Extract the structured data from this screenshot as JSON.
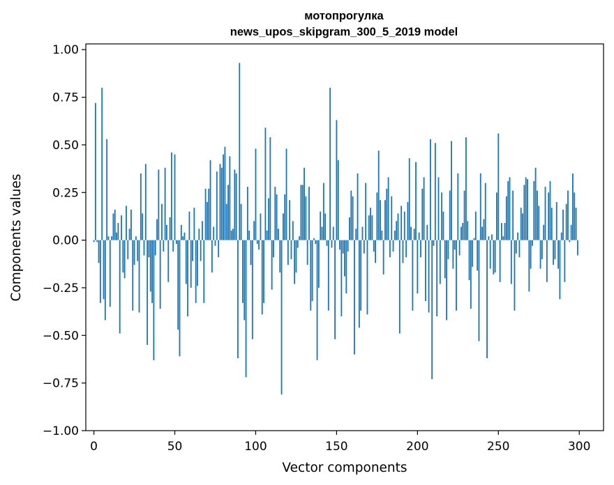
{
  "chart_data": {
    "type": "bar",
    "title": "мотопрогулка",
    "subtitle": "news_upos_skipgram_300_5_2019 model",
    "xlabel": "Vector components",
    "ylabel": "Components values",
    "xlim": [
      -5,
      315
    ],
    "ylim": [
      -1.0,
      1.03
    ],
    "xticks": [
      0,
      50,
      100,
      150,
      200,
      250,
      300
    ],
    "xtick_labels": [
      "0",
      "50",
      "100",
      "150",
      "200",
      "250",
      "300"
    ],
    "yticks": [
      1.0,
      0.75,
      0.5,
      0.25,
      0.0,
      -0.25,
      -0.5,
      -0.75,
      -1.0
    ],
    "ytick_labels": [
      "1.00",
      "0.75",
      "0.50",
      "0.25",
      "0.00",
      "−0.25",
      "−0.50",
      "−0.75",
      "−1.00"
    ],
    "grid": false,
    "bar_color": "#1f77b4",
    "x": [
      0,
      1,
      2,
      3,
      4,
      5,
      6,
      7,
      8,
      9,
      10,
      11,
      12,
      13,
      14,
      15,
      16,
      17,
      18,
      19,
      20,
      21,
      22,
      23,
      24,
      25,
      26,
      27,
      28,
      29,
      30,
      31,
      32,
      33,
      34,
      35,
      36,
      37,
      38,
      39,
      40,
      41,
      42,
      43,
      44,
      45,
      46,
      47,
      48,
      49,
      50,
      51,
      52,
      53,
      54,
      55,
      56,
      57,
      58,
      59,
      60,
      61,
      62,
      63,
      64,
      65,
      66,
      67,
      68,
      69,
      70,
      71,
      72,
      73,
      74,
      75,
      76,
      77,
      78,
      79,
      80,
      81,
      82,
      83,
      84,
      85,
      86,
      87,
      88,
      89,
      90,
      91,
      92,
      93,
      94,
      95,
      96,
      97,
      98,
      99,
      100,
      101,
      102,
      103,
      104,
      105,
      106,
      107,
      108,
      109,
      110,
      111,
      112,
      113,
      114,
      115,
      116,
      117,
      118,
      119,
      120,
      121,
      122,
      123,
      124,
      125,
      126,
      127,
      128,
      129,
      130,
      131,
      132,
      133,
      134,
      135,
      136,
      137,
      138,
      139,
      140,
      141,
      142,
      143,
      144,
      145,
      146,
      147,
      148,
      149,
      150,
      151,
      152,
      153,
      154,
      155,
      156,
      157,
      158,
      159,
      160,
      161,
      162,
      163,
      164,
      165,
      166,
      167,
      168,
      169,
      170,
      171,
      172,
      173,
      174,
      175,
      176,
      177,
      178,
      179,
      180,
      181,
      182,
      183,
      184,
      185,
      186,
      187,
      188,
      189,
      190,
      191,
      192,
      193,
      194,
      195,
      196,
      197,
      198,
      199,
      200,
      201,
      202,
      203,
      204,
      205,
      206,
      207,
      208,
      209,
      210,
      211,
      212,
      213,
      214,
      215,
      216,
      217,
      218,
      219,
      220,
      221,
      222,
      223,
      224,
      225,
      226,
      227,
      228,
      229,
      230,
      231,
      232,
      233,
      234,
      235,
      236,
      237,
      238,
      239,
      240,
      241,
      242,
      243,
      244,
      245,
      246,
      247,
      248,
      249,
      250,
      251,
      252,
      253,
      254,
      255,
      256,
      257,
      258,
      259,
      260,
      261,
      262,
      263,
      264,
      265,
      266,
      267,
      268,
      269,
      270,
      271,
      272,
      273,
      274,
      275,
      276,
      277,
      278,
      279,
      280,
      281,
      282,
      283,
      284,
      285,
      286,
      287,
      288,
      289,
      290,
      291,
      292,
      293,
      294,
      295,
      296,
      297,
      298,
      299
    ],
    "values": [
      -0.01,
      0.72,
      -0.01,
      -0.12,
      -0.33,
      0.8,
      -0.31,
      -0.42,
      0.53,
      0.02,
      -0.35,
      0.02,
      0.14,
      0.16,
      0.04,
      0.09,
      -0.49,
      0.13,
      -0.17,
      -0.2,
      0.18,
      -0.1,
      0.06,
      0.16,
      -0.37,
      -0.13,
      0.02,
      -0.11,
      -0.38,
      0.35,
      0.14,
      -0.08,
      0.4,
      -0.55,
      -0.09,
      -0.27,
      -0.33,
      -0.63,
      -0.08,
      0.11,
      0.37,
      -0.36,
      0.19,
      -0.06,
      0.38,
      0.08,
      -0.22,
      0.12,
      0.46,
      -0.06,
      0.45,
      -0.02,
      -0.47,
      -0.61,
      0.08,
      0.02,
      0.04,
      -0.23,
      -0.4,
      0.15,
      -0.25,
      -0.11,
      0.17,
      -0.33,
      -0.24,
      0.06,
      -0.11,
      0.1,
      -0.33,
      0.27,
      0.2,
      0.27,
      0.42,
      -0.17,
      0.07,
      -0.03,
      0.36,
      -0.09,
      0.4,
      0.38,
      0.45,
      0.49,
      0.19,
      0.29,
      0.44,
      0.05,
      0.06,
      0.37,
      0.35,
      -0.62,
      0.93,
      0.19,
      -0.33,
      -0.42,
      -0.72,
      0.28,
      0.05,
      -0.13,
      -0.52,
      0.1,
      0.48,
      -0.02,
      -0.05,
      0.14,
      -0.39,
      -0.33,
      0.59,
      0.05,
      0.22,
      0.54,
      -0.26,
      -0.09,
      0.28,
      0.24,
      0.06,
      -0.17,
      -0.81,
      0.14,
      0.24,
      0.48,
      -0.13,
      0.21,
      -0.1,
      0.1,
      -0.23,
      -0.17,
      -0.04,
      0.02,
      0.29,
      0.29,
      0.38,
      0.23,
      -0.13,
      0.28,
      -0.37,
      -0.32,
      0.01,
      -0.02,
      -0.63,
      -0.25,
      0.15,
      0.07,
      0.3,
      0.14,
      -0.03,
      -0.37,
      0.8,
      -0.04,
      0.07,
      -0.52,
      0.63,
      0.42,
      -0.05,
      -0.4,
      -0.07,
      -0.19,
      -0.28,
      -0.06,
      0.12,
      0.26,
      0.23,
      -0.6,
      0.06,
      0.35,
      -0.46,
      -0.37,
      0.07,
      -0.07,
      0.3,
      -0.39,
      0.13,
      0.17,
      0.13,
      -0.06,
      -0.12,
      0.25,
      0.47,
      0.21,
      0.05,
      -0.18,
      0.21,
      0.27,
      0.33,
      -0.09,
      0.23,
      -0.06,
      0.05,
      0.1,
      0.14,
      -0.49,
      0.18,
      -0.12,
      0.15,
      -0.09,
      0.2,
      0.43,
      0.07,
      -0.37,
      0.06,
      0.41,
      -0.28,
      0.04,
      -0.09,
      0.27,
      0.33,
      -0.32,
      0.08,
      -0.38,
      0.53,
      -0.73,
      -0.03,
      0.51,
      -0.4,
      0.33,
      -0.23,
      0.25,
      0.15,
      -0.2,
      -0.42,
      -0.1,
      0.26,
      0.52,
      -0.15,
      -0.05,
      -0.37,
      0.35,
      -0.08,
      0.07,
      0.09,
      0.26,
      0.54,
      0.1,
      -0.21,
      -0.36,
      -0.14,
      0.01,
      0.15,
      -0.16,
      -0.53,
      0.35,
      0.07,
      0.11,
      0.3,
      -0.62,
      0.02,
      -0.15,
      0.03,
      -0.18,
      -0.17,
      0.25,
      0.56,
      -0.22,
      0.09,
      0.02,
      0.09,
      0.23,
      0.31,
      0.33,
      -0.23,
      0.26,
      -0.37,
      -0.07,
      0.04,
      -0.09,
      0.17,
      0.14,
      0.29,
      0.33,
      0.32,
      -0.27,
      -0.15,
      -0.03,
      0.31,
      0.38,
      0.26,
      0.18,
      -0.15,
      -0.1,
      0.08,
      0.28,
      -0.22,
      0.25,
      0.31,
      0.17,
      -0.13,
      -0.1,
      0.2,
      -0.15,
      -0.31,
      0.04,
      0.16,
      -0.22,
      0.19,
      0.26,
      -0.01,
      0.08,
      0.35,
      0.25,
      0.17,
      -0.08
    ]
  }
}
